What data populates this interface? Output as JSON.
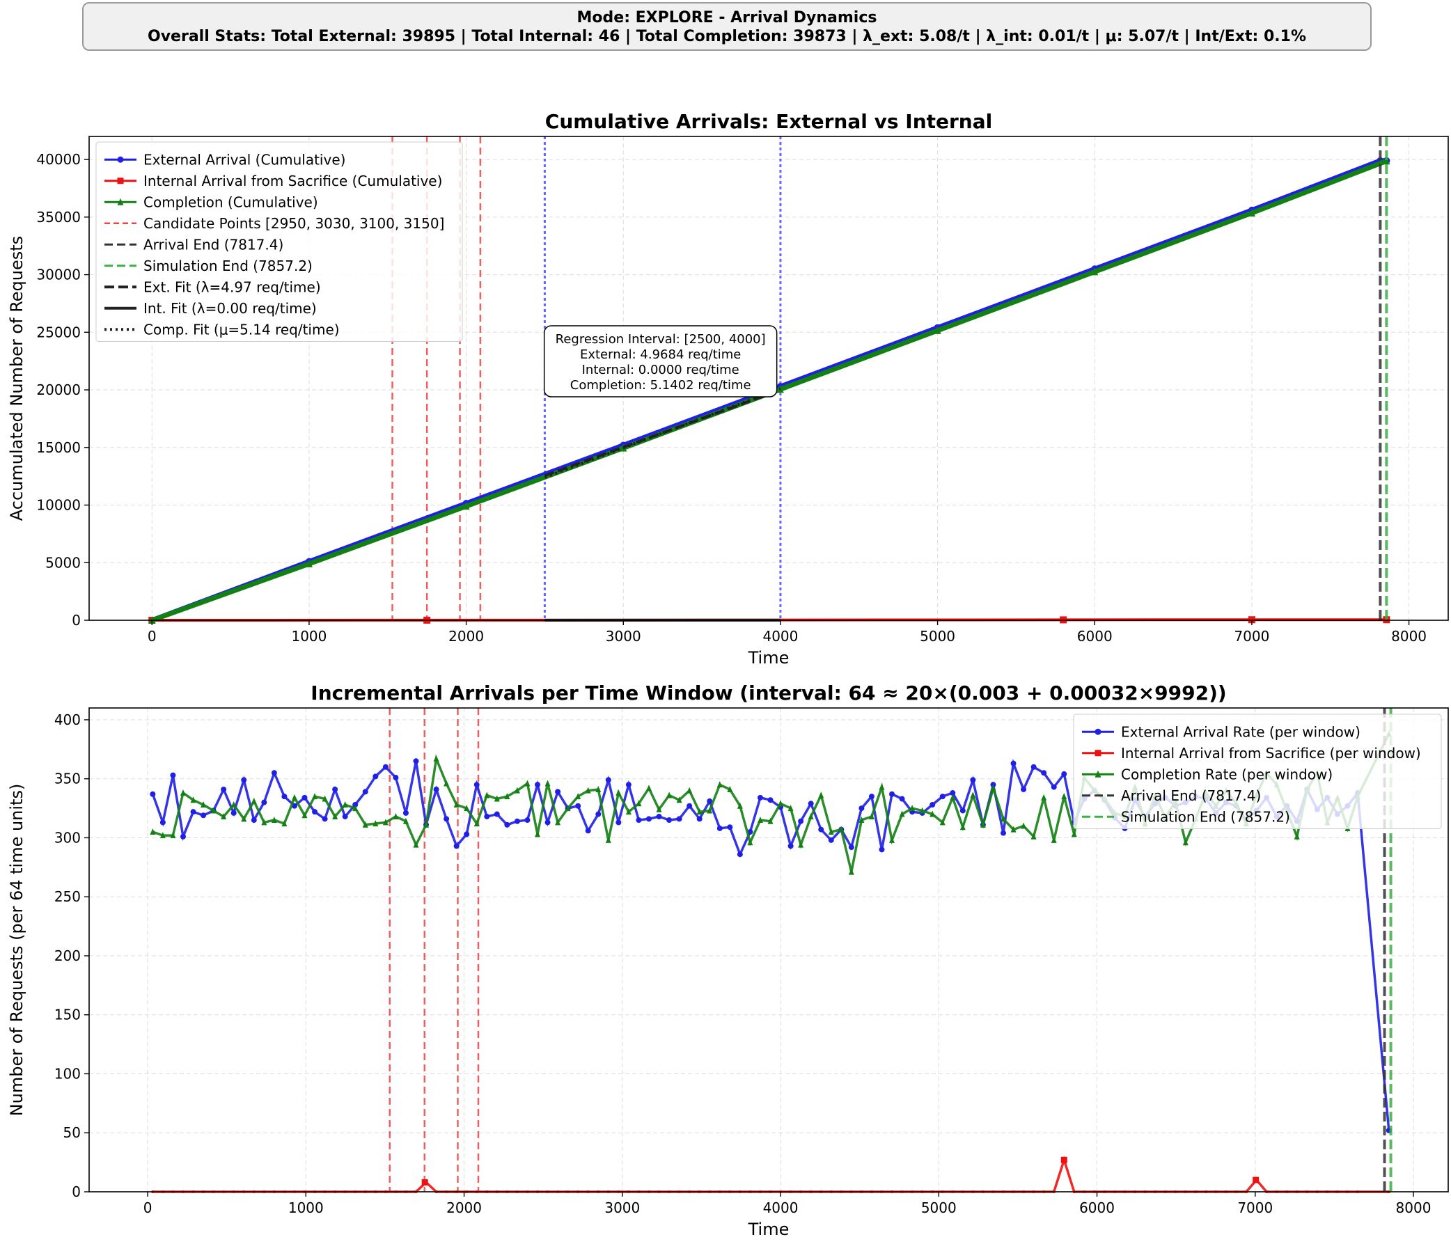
{
  "banner": {
    "line1": "Mode: EXPLORE - Arrival Dynamics",
    "line2": "Overall Stats: Total External: 39895  |  Total Internal: 46  |  Total Completion: 39873  |  λ_ext: 5.08/t  |  λ_int: 0.01/t  |  μ: 5.07/t  |  Int/Ext: 0.1%"
  },
  "colors": {
    "external": "#1f1fe6",
    "internal": "#ee1111",
    "completion": "#138013",
    "candidate": "#ee4444",
    "arrival_end": "#333333",
    "sim_end": "#3cb043",
    "regression": "#4a4aff"
  },
  "chart_data": [
    {
      "type": "line",
      "title": "Cumulative Arrivals: External vs Internal",
      "xlabel": "Time",
      "ylabel": "Accumulated Number of Requests",
      "xlim": [
        -400,
        8250
      ],
      "ylim": [
        0,
        42000
      ],
      "xticks": [
        0,
        1000,
        2000,
        3000,
        4000,
        5000,
        6000,
        7000,
        8000
      ],
      "yticks": [
        0,
        5000,
        10000,
        15000,
        20000,
        25000,
        30000,
        35000,
        40000
      ],
      "grid": true,
      "legend_position": "top-left",
      "series": [
        {
          "name": "External Arrival (Cumulative)",
          "x": [
            0,
            1000,
            2000,
            3000,
            4000,
            5000,
            6000,
            7000,
            7817.4,
            7857.2
          ],
          "y": [
            0,
            5100,
            10150,
            15200,
            20300,
            25400,
            30500,
            35600,
            39895,
            39895
          ]
        },
        {
          "name": "Internal Arrival from Sacrifice (Cumulative)",
          "x": [
            0,
            1750,
            5800,
            7000,
            7857.2
          ],
          "y": [
            0,
            8,
            36,
            46,
            46
          ]
        },
        {
          "name": "Completion (Cumulative)",
          "x": [
            0,
            1000,
            2000,
            3000,
            4000,
            5000,
            6000,
            7000,
            7857.2
          ],
          "y": [
            0,
            4900,
            9900,
            14950,
            20050,
            25150,
            30250,
            35350,
            39873
          ]
        }
      ],
      "candidate_points": {
        "label": "Candidate Points [2950, 3030, 3100, 3150]",
        "x": [
          1530,
          1750,
          1960,
          2090
        ]
      },
      "arrival_end": {
        "label": "Arrival End (7817.4)",
        "x": 7817.4
      },
      "simulation_end": {
        "label": "Simulation End (7857.2)",
        "x": 7857.2
      },
      "fits": [
        {
          "label": "Ext. Fit (λ=4.97 req/time)"
        },
        {
          "label": "Int. Fit (λ=0.00 req/time)"
        },
        {
          "label": "Comp. Fit (μ=5.14 req/time)"
        }
      ],
      "regression_interval": [
        2500,
        4000
      ],
      "annotation": [
        "Regression Interval: [2500, 4000]",
        "External: 4.9684 req/time",
        "Internal: 0.0000 req/time",
        "Completion: 5.1402 req/time"
      ]
    },
    {
      "type": "line",
      "title": "Incremental Arrivals per Time Window (interval: 64 ≈ 20×(0.003 + 0.00032×9992))",
      "xlabel": "Time",
      "ylabel": "Number of Requests (per 64 time units)",
      "xlim": [
        -370,
        8220
      ],
      "ylim": [
        0,
        410
      ],
      "xticks": [
        0,
        1000,
        2000,
        3000,
        4000,
        5000,
        6000,
        7000,
        8000
      ],
      "yticks": [
        0,
        50,
        100,
        150,
        200,
        250,
        300,
        350,
        400
      ],
      "grid": true,
      "legend_position": "top-right",
      "window_start": 32,
      "window_step": 64,
      "series": [
        {
          "name": "External Arrival Rate (per window)",
          "end_x": 7845,
          "end_y": 52,
          "values": [
            337,
            313,
            353,
            301,
            322,
            319,
            323,
            341,
            321,
            349,
            315,
            330,
            355,
            335,
            327,
            334,
            322,
            316,
            341,
            318,
            328,
            339,
            352,
            360,
            351,
            321,
            365,
            311,
            341,
            316,
            293,
            303,
            345,
            318,
            320,
            311,
            314,
            315,
            345,
            313,
            339,
            325,
            327,
            306,
            320,
            349,
            313,
            345,
            315,
            316,
            318,
            315,
            316,
            327,
            316,
            331,
            308,
            309,
            286,
            305,
            334,
            332,
            326,
            293,
            314,
            329,
            307,
            298,
            307,
            292,
            325,
            335,
            290,
            337,
            333,
            322,
            321,
            328,
            335,
            338,
            323,
            349,
            311,
            345,
            304,
            363,
            341,
            360,
            355,
            343,
            354,
            313,
            333,
            340,
            332,
            317,
            308,
            332,
            318,
            329,
            334,
            327,
            330,
            335,
            333,
            321,
            330,
            327,
            315,
            323,
            334,
            318,
            327,
            314,
            341,
            324,
            334,
            320,
            327,
            338
          ]
        },
        {
          "name": "Internal Arrival from Sacrifice (per window)",
          "end_x": 7845,
          "end_y": 0,
          "spikes": [
            {
              "x": 1752,
              "y": 8
            },
            {
              "x": 5792,
              "y": 27
            },
            {
              "x": 7004,
              "y": 10
            }
          ]
        },
        {
          "name": "Completion Rate (per window)",
          "end_x": 7845,
          "end_y": 388,
          "values": [
            305,
            302,
            302,
            338,
            332,
            328,
            323,
            318,
            328,
            316,
            331,
            313,
            315,
            312,
            334,
            319,
            335,
            333,
            318,
            328,
            325,
            311,
            312,
            313,
            318,
            314,
            294,
            311,
            367,
            346,
            328,
            325,
            312,
            336,
            333,
            335,
            340,
            346,
            303,
            346,
            313,
            325,
            335,
            340,
            341,
            298,
            338,
            322,
            329,
            342,
            324,
            336,
            332,
            340,
            322,
            323,
            345,
            341,
            327,
            296,
            315,
            314,
            329,
            325,
            294,
            318,
            336,
            305,
            307,
            271,
            315,
            318,
            343,
            298,
            320,
            325,
            323,
            320,
            313,
            334,
            309,
            336,
            311,
            342,
            316,
            307,
            310,
            301,
            334,
            298,
            335,
            303,
            351,
            340,
            333,
            321,
            318,
            343,
            312,
            336,
            317,
            331,
            296,
            316,
            338,
            327,
            340,
            329,
            312,
            336,
            355,
            345,
            323,
            301,
            341,
            355,
            313,
            334,
            308,
            335
          ]
        }
      ],
      "candidate_points": {
        "x": [
          1530,
          1750,
          1960,
          2090
        ]
      },
      "arrival_end": {
        "label": "Arrival End (7817.4)",
        "x": 7817.4
      },
      "simulation_end": {
        "label": "Simulation End (7857.2)",
        "x": 7857.2
      }
    }
  ]
}
